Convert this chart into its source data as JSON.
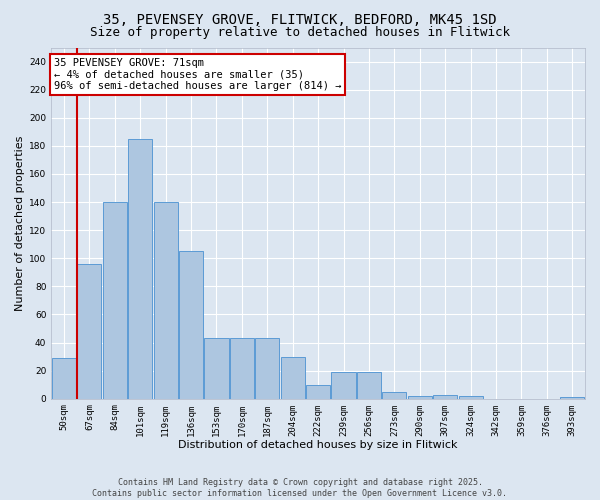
{
  "title_line1": "35, PEVENSEY GROVE, FLITWICK, BEDFORD, MK45 1SD",
  "title_line2": "Size of property relative to detached houses in Flitwick",
  "xlabel": "Distribution of detached houses by size in Flitwick",
  "ylabel": "Number of detached properties",
  "categories": [
    "50sqm",
    "67sqm",
    "84sqm",
    "101sqm",
    "119sqm",
    "136sqm",
    "153sqm",
    "170sqm",
    "187sqm",
    "204sqm",
    "222sqm",
    "239sqm",
    "256sqm",
    "273sqm",
    "290sqm",
    "307sqm",
    "324sqm",
    "342sqm",
    "359sqm",
    "376sqm",
    "393sqm"
  ],
  "values": [
    29,
    96,
    140,
    185,
    140,
    105,
    43,
    43,
    43,
    30,
    10,
    19,
    19,
    5,
    2,
    3,
    2,
    0,
    0,
    0,
    1
  ],
  "bar_color": "#adc6e0",
  "bar_edge_color": "#5b9bd5",
  "vline_color": "#cc0000",
  "annotation_text": "35 PEVENSEY GROVE: 71sqm\n← 4% of detached houses are smaller (35)\n96% of semi-detached houses are larger (814) →",
  "annotation_box_color": "#ffffff",
  "annotation_box_edge_color": "#cc0000",
  "ylim": [
    0,
    250
  ],
  "yticks": [
    0,
    20,
    40,
    60,
    80,
    100,
    120,
    140,
    160,
    180,
    200,
    220,
    240
  ],
  "background_color": "#dce6f1",
  "grid_color": "#ffffff",
  "footer_text": "Contains HM Land Registry data © Crown copyright and database right 2025.\nContains public sector information licensed under the Open Government Licence v3.0.",
  "title_fontsize": 10,
  "subtitle_fontsize": 9,
  "axis_label_fontsize": 8,
  "tick_fontsize": 6.5,
  "annotation_fontsize": 7.5,
  "footer_fontsize": 6
}
